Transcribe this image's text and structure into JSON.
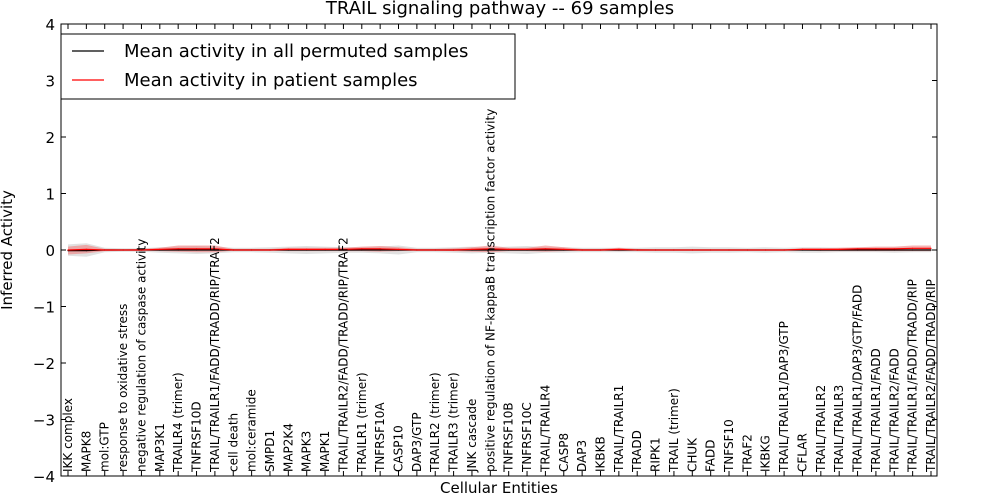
{
  "chart_data": {
    "type": "line",
    "title": "TRAIL signaling pathway -- 69 samples",
    "xlabel": "Cellular Entities",
    "ylabel": "Inferred Activity",
    "ylim": [
      -4,
      4
    ],
    "yticks": [
      -4,
      -3,
      -2,
      -1,
      0,
      1,
      2,
      3,
      4
    ],
    "ytick_labels": [
      "−4",
      "−3",
      "−2",
      "−1",
      "0",
      "1",
      "2",
      "3",
      "4"
    ],
    "legend_position": "top-left",
    "categories": [
      "IKK complex",
      "MAPK8",
      "mol:GTP",
      "response to oxidative stress",
      "negative regulation of caspase activity",
      "MAP3K1",
      "TRAILR4 (trimer)",
      "TNFRSF10D",
      "TRAIL/TRAILR1/FADD/TRADD/RIP/TRAF2",
      "cell death",
      "mol:ceramide",
      "SMPD1",
      "MAP2K4",
      "MAPK3",
      "MAPK1",
      "TRAIL/TRAILR2/FADD/TRADD/RIP/TRAF2",
      "TRAILR1 (trimer)",
      "TNFRSF10A",
      "CASP10",
      "DAP3/GTP",
      "TRAILR2 (trimer)",
      "TRAILR3 (trimer)",
      "JNK cascade",
      "positive regulation of NF-kappaB transcription factor activity",
      "TNFRSF10B",
      "TNFRSF10C",
      "TRAIL/TRAILR4",
      "CASP8",
      "DAP3",
      "IKBKB",
      "TRAIL/TRAILR1",
      "TRADD",
      "RIPK1",
      "TRAIL (trimer)",
      "CHUK",
      "FADD",
      "TNFSF10",
      "TRAF2",
      "IKBKG",
      "TRAIL/TRAILR1/DAP3/GTP",
      "CFLAR",
      "TRAIL/TRAILR2",
      "TRAIL/TRAILR3",
      "TRAIL/TRAILR1/DAP3/GTP/FADD",
      "TRAIL/TRAILR1/FADD",
      "TRAIL/TRAILR2/FADD",
      "TRAIL/TRAILR1/FADD/TRADD/RIP",
      "TRAIL/TRAILR2/FADD/TRADD/RIP"
    ],
    "series": [
      {
        "name": "Mean activity in all permuted samples",
        "color": "#000000",
        "values": [
          -0.01,
          -0.01,
          0,
          0,
          0,
          0,
          0,
          0,
          0,
          0,
          0,
          0,
          0,
          0,
          0,
          0,
          0,
          0,
          0,
          0,
          0,
          0,
          0,
          0,
          0,
          0,
          0,
          0,
          0,
          0,
          0,
          0,
          0,
          0,
          0,
          0,
          0,
          0,
          0,
          0,
          0,
          0,
          0,
          0,
          0,
          0,
          0,
          0
        ],
        "band_low": [
          -0.1,
          -0.12,
          -0.04,
          -0.03,
          -0.03,
          -0.05,
          -0.06,
          -0.07,
          -0.06,
          -0.04,
          -0.04,
          -0.05,
          -0.06,
          -0.07,
          -0.06,
          -0.05,
          -0.05,
          -0.06,
          -0.08,
          -0.04,
          -0.04,
          -0.05,
          -0.06,
          -0.05,
          -0.06,
          -0.07,
          -0.05,
          -0.05,
          -0.04,
          -0.04,
          -0.04,
          -0.04,
          -0.05,
          -0.05,
          -0.06,
          -0.05,
          -0.05,
          -0.04,
          -0.05,
          -0.04,
          -0.05,
          -0.05,
          -0.04,
          -0.04,
          -0.04,
          -0.05,
          -0.04,
          -0.04
        ],
        "band_high": [
          0.1,
          0.12,
          0.04,
          0.03,
          0.03,
          0.05,
          0.06,
          0.07,
          0.06,
          0.04,
          0.04,
          0.05,
          0.06,
          0.07,
          0.06,
          0.05,
          0.05,
          0.06,
          0.08,
          0.04,
          0.04,
          0.05,
          0.06,
          0.05,
          0.06,
          0.07,
          0.05,
          0.05,
          0.04,
          0.04,
          0.04,
          0.04,
          0.05,
          0.05,
          0.06,
          0.05,
          0.05,
          0.04,
          0.05,
          0.04,
          0.05,
          0.05,
          0.04,
          0.04,
          0.04,
          0.05,
          0.04,
          0.04
        ],
        "band_color": "#c8c8c8"
      },
      {
        "name": "Mean activity in patient samples",
        "color": "#ff0000",
        "values": [
          0.0,
          0.01,
          0,
          0,
          0,
          0.01,
          0.02,
          0.02,
          0.02,
          0,
          0,
          0,
          0.01,
          0.01,
          0.01,
          0.01,
          0.02,
          0.02,
          0.01,
          0,
          0,
          0,
          0.01,
          0.02,
          0.01,
          0.01,
          0.02,
          0.01,
          0,
          0,
          0.01,
          0,
          0,
          0,
          0,
          0,
          0,
          0,
          0,
          0,
          0.01,
          0.01,
          0.01,
          0.02,
          0.02,
          0.02,
          0.03,
          0.03
        ],
        "band_low": [
          -0.08,
          -0.06,
          -0.02,
          -0.01,
          -0.01,
          -0.02,
          -0.03,
          -0.04,
          -0.04,
          -0.01,
          -0.01,
          -0.01,
          -0.02,
          -0.02,
          -0.02,
          -0.02,
          -0.02,
          -0.03,
          -0.02,
          -0.01,
          -0.01,
          -0.02,
          -0.03,
          -0.04,
          -0.02,
          -0.02,
          -0.03,
          -0.02,
          -0.01,
          -0.01,
          -0.02,
          -0.01,
          -0.01,
          -0.01,
          -0.01,
          -0.01,
          -0.01,
          -0.01,
          -0.01,
          -0.01,
          -0.01,
          -0.02,
          -0.02,
          -0.02,
          -0.02,
          -0.02,
          -0.02,
          -0.02
        ],
        "band_high": [
          0.06,
          0.09,
          0.02,
          0.01,
          0.02,
          0.04,
          0.08,
          0.08,
          0.08,
          0.02,
          0.02,
          0.02,
          0.04,
          0.04,
          0.04,
          0.04,
          0.06,
          0.07,
          0.05,
          0.02,
          0.02,
          0.03,
          0.05,
          0.08,
          0.04,
          0.04,
          0.08,
          0.05,
          0.02,
          0.02,
          0.04,
          0.02,
          0.01,
          0.01,
          0.01,
          0.01,
          0.01,
          0.01,
          0.01,
          0.01,
          0.03,
          0.03,
          0.04,
          0.05,
          0.06,
          0.06,
          0.08,
          0.08
        ],
        "band_color": "#f08080"
      }
    ]
  }
}
